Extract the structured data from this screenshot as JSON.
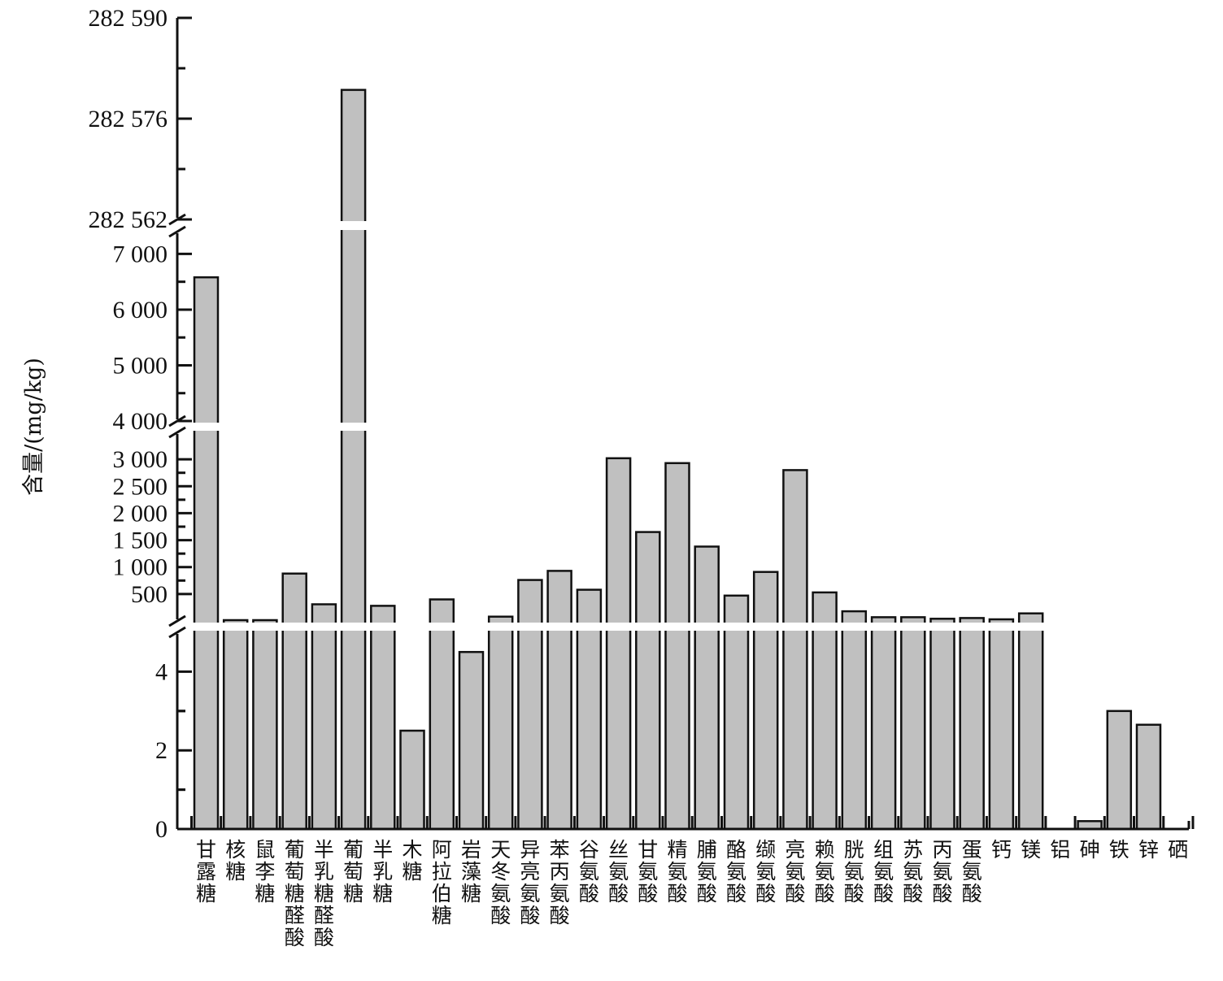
{
  "chart_data": {
    "type": "bar",
    "ylabel": "含量/(mg/kg)",
    "xlabel": "",
    "axis_breaks": true,
    "grid": false,
    "legend": "none",
    "bar_color": "#c0c0c0",
    "segments": [
      {
        "range": [
          0,
          5
        ],
        "ticks": [
          0,
          2,
          4
        ],
        "tick_labels": [
          "0",
          "2",
          "4"
        ]
      },
      {
        "range": [
          0,
          3500
        ],
        "ticks": [
          500,
          1000,
          1500,
          2000,
          2500,
          3000
        ],
        "tick_labels": [
          "500",
          "1 000",
          "1 500",
          "2 000",
          "2 500",
          "3 000"
        ]
      },
      {
        "range": [
          4000,
          7400
        ],
        "ticks": [
          4000,
          5000,
          6000,
          7000
        ],
        "tick_labels": [
          "4 000",
          "5 000",
          "6 000",
          "7 000"
        ]
      },
      {
        "range": [
          282562,
          282590
        ],
        "ticks": [
          282562,
          282576,
          282590
        ],
        "tick_labels": [
          "282 562",
          "282 576",
          "282 590"
        ]
      }
    ],
    "categories": [
      "甘露糖",
      "核糖",
      "鼠李糖",
      "葡萄糖醛酸",
      "半乳糖醛酸",
      "葡萄糖",
      "半乳糖",
      "木糖",
      "阿拉伯糖",
      "岩藻糖",
      "天冬氨酸",
      "异亮氨酸",
      "苯丙氨酸",
      "谷氨酸",
      "丝氨酸",
      "甘氨酸",
      "精氨酸",
      "脯氨酸",
      "酪氨酸",
      "缬氨酸",
      "亮氨酸",
      "赖氨酸",
      "胱氨酸",
      "组氨酸",
      "苏氨酸",
      "丙氨酸",
      "蛋氨酸",
      "钙",
      "镁",
      "铝",
      "砷",
      "铁",
      "锌",
      "硒"
    ],
    "values": [
      6580,
      15,
      15,
      880,
      310,
      282580,
      280,
      2.5,
      400,
      4.5,
      80,
      760,
      930,
      580,
      3020,
      1650,
      2930,
      1380,
      470,
      910,
      2800,
      530,
      180,
      70,
      70,
      40,
      55,
      30,
      140,
      0,
      0.2,
      3.0,
      2.65,
      0
    ]
  }
}
